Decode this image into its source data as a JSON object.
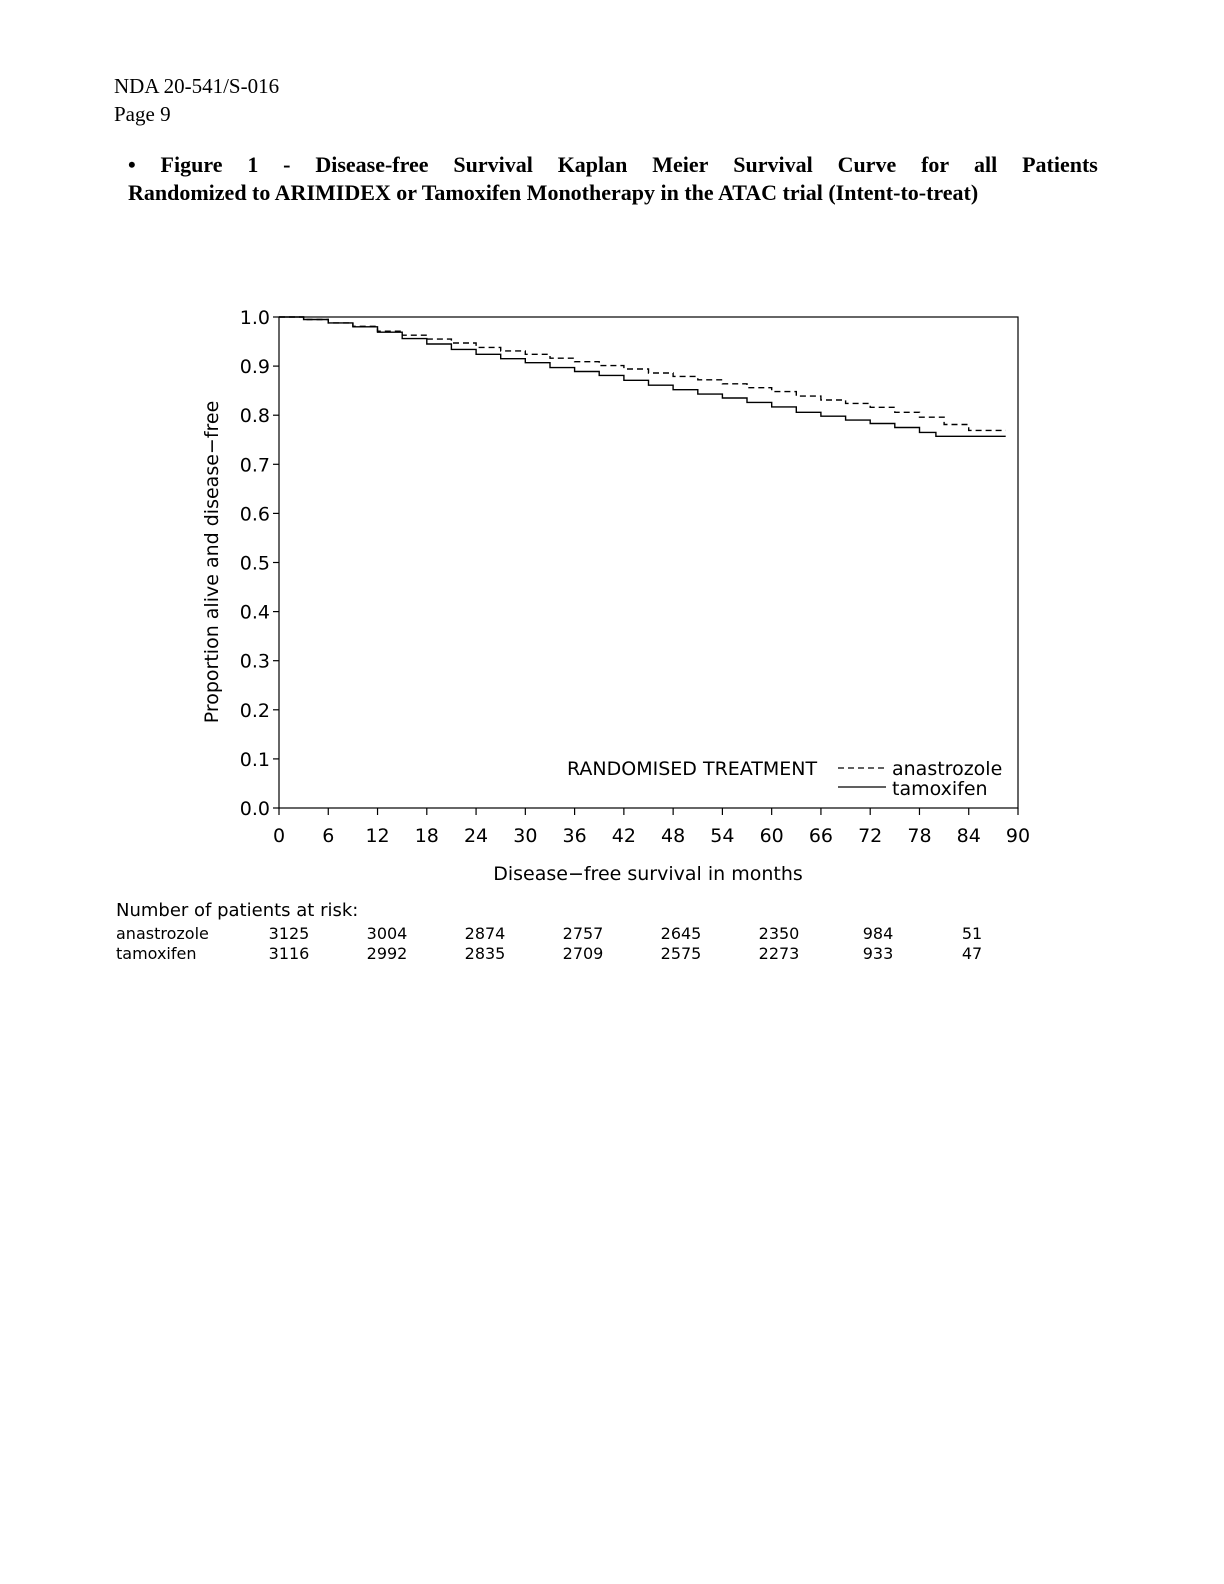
{
  "header": {
    "line1": "NDA 20-541/S-016",
    "line2": "Page 9"
  },
  "caption": {
    "bullet": "•",
    "line1_words": [
      "Figure",
      "1",
      "-",
      "Disease-free",
      "Survival",
      "Kaplan",
      "Meier",
      "Survival",
      "Curve",
      "for",
      "all",
      "Patients"
    ],
    "line2": "Randomized to ARIMIDEX or Tamoxifen Monotherapy in the ATAC trial (Intent-to-treat)"
  },
  "chart_data": {
    "type": "line",
    "xlabel": "Disease−free survival in months",
    "ylabel": "Proportion alive and disease−free",
    "xlim": [
      0,
      90
    ],
    "ylim": [
      0.0,
      1.0
    ],
    "x_ticks": [
      "0",
      "6",
      "12",
      "18",
      "24",
      "30",
      "36",
      "42",
      "48",
      "54",
      "60",
      "66",
      "72",
      "78",
      "84",
      "90"
    ],
    "y_ticks": [
      "0.0",
      "0.1",
      "0.2",
      "0.3",
      "0.4",
      "0.5",
      "0.6",
      "0.7",
      "0.8",
      "0.9",
      "1.0"
    ],
    "legend_title": "RANDOMISED TREATMENT",
    "legend_position": "bottom-right",
    "series": [
      {
        "name": "anastrozole",
        "style": "dashed",
        "x": [
          0,
          3,
          6,
          9,
          12,
          15,
          18,
          21,
          24,
          27,
          30,
          33,
          36,
          39,
          42,
          45,
          48,
          51,
          54,
          57,
          60,
          63,
          66,
          69,
          72,
          75,
          78,
          81,
          84,
          88.5
        ],
        "y": [
          1.0,
          0.995,
          0.988,
          0.981,
          0.971,
          0.963,
          0.955,
          0.947,
          0.938,
          0.931,
          0.924,
          0.916,
          0.909,
          0.901,
          0.894,
          0.886,
          0.879,
          0.872,
          0.864,
          0.856,
          0.848,
          0.839,
          0.831,
          0.824,
          0.816,
          0.806,
          0.796,
          0.781,
          0.769,
          0.769
        ]
      },
      {
        "name": "tamoxifen",
        "style": "solid",
        "x": [
          0,
          3,
          6,
          9,
          12,
          15,
          18,
          21,
          24,
          27,
          30,
          33,
          36,
          39,
          42,
          45,
          48,
          51,
          54,
          57,
          60,
          63,
          66,
          69,
          72,
          75,
          78,
          80,
          84,
          88.5
        ],
        "y": [
          1.0,
          0.995,
          0.988,
          0.98,
          0.969,
          0.956,
          0.945,
          0.934,
          0.924,
          0.915,
          0.907,
          0.897,
          0.889,
          0.881,
          0.871,
          0.861,
          0.852,
          0.843,
          0.835,
          0.826,
          0.817,
          0.806,
          0.798,
          0.79,
          0.783,
          0.775,
          0.765,
          0.757,
          0.757,
          0.757
        ]
      }
    ]
  },
  "risk_table": {
    "title": "Number of patients at risk:",
    "months": [
      0,
      12,
      24,
      36,
      48,
      60,
      72,
      84
    ],
    "rows": [
      {
        "label": "anastrozole",
        "values": [
          "3125",
          "3004",
          "2874",
          "2757",
          "2645",
          "2350",
          "984",
          "51"
        ]
      },
      {
        "label": "tamoxifen",
        "values": [
          "3116",
          "2992",
          "2835",
          "2709",
          "2575",
          "2273",
          "933",
          "47"
        ]
      }
    ]
  }
}
